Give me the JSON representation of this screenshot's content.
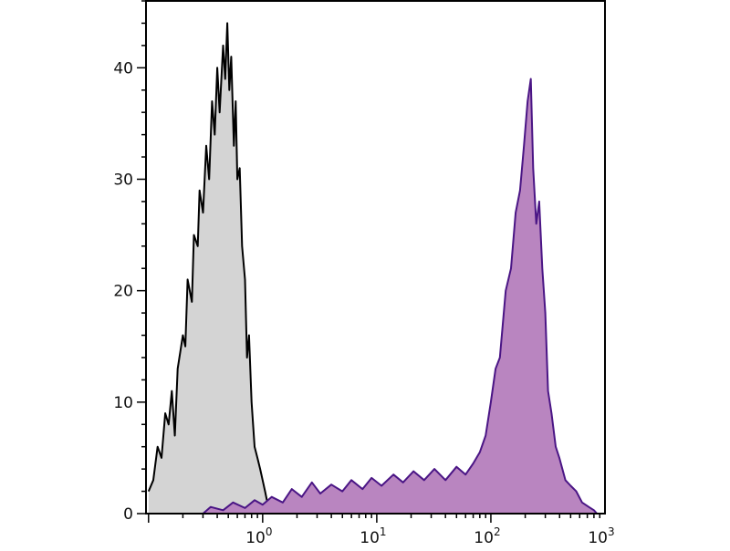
{
  "chart_data": {
    "type": "area",
    "title": "",
    "xlabel": "",
    "ylabel": "",
    "x_scale": "log",
    "xlim": [
      0.095,
      1000
    ],
    "ylim": [
      0,
      46
    ],
    "grid": false,
    "x_ticks": [
      {
        "label": "10",
        "exp": "0",
        "value": 1
      },
      {
        "label": "10",
        "exp": "1",
        "value": 10
      },
      {
        "label": "10",
        "exp": "2",
        "value": 100
      },
      {
        "label": "10",
        "exp": "3",
        "value": 1000
      }
    ],
    "y_ticks": [
      0,
      10,
      20,
      30,
      40
    ],
    "series": [
      {
        "fill": "#d4d4d4",
        "stroke": "#000000",
        "points": [
          [
            0.1,
            2
          ],
          [
            0.11,
            3
          ],
          [
            0.12,
            6
          ],
          [
            0.13,
            5
          ],
          [
            0.14,
            9
          ],
          [
            0.15,
            8
          ],
          [
            0.16,
            11
          ],
          [
            0.17,
            7
          ],
          [
            0.18,
            13
          ],
          [
            0.2,
            16
          ],
          [
            0.21,
            15
          ],
          [
            0.22,
            21
          ],
          [
            0.24,
            19
          ],
          [
            0.25,
            25
          ],
          [
            0.27,
            24
          ],
          [
            0.28,
            29
          ],
          [
            0.3,
            27
          ],
          [
            0.32,
            33
          ],
          [
            0.34,
            30
          ],
          [
            0.36,
            37
          ],
          [
            0.38,
            34
          ],
          [
            0.4,
            40
          ],
          [
            0.42,
            36
          ],
          [
            0.45,
            42
          ],
          [
            0.47,
            39
          ],
          [
            0.49,
            44
          ],
          [
            0.51,
            38
          ],
          [
            0.53,
            41
          ],
          [
            0.56,
            33
          ],
          [
            0.58,
            37
          ],
          [
            0.6,
            30
          ],
          [
            0.63,
            31
          ],
          [
            0.66,
            24
          ],
          [
            0.7,
            21
          ],
          [
            0.73,
            14
          ],
          [
            0.76,
            16
          ],
          [
            0.8,
            10
          ],
          [
            0.85,
            6
          ],
          [
            0.9,
            5
          ],
          [
            0.95,
            4
          ],
          [
            1.0,
            3
          ],
          [
            1.05,
            2
          ],
          [
            1.1,
            1
          ],
          [
            1.2,
            0
          ]
        ]
      },
      {
        "fill": "#b985c0",
        "stroke": "#4a1585",
        "points": [
          [
            0.3,
            0
          ],
          [
            0.35,
            0.6
          ],
          [
            0.45,
            0.3
          ],
          [
            0.55,
            1
          ],
          [
            0.7,
            0.5
          ],
          [
            0.85,
            1.2
          ],
          [
            1.0,
            0.8
          ],
          [
            1.2,
            1.5
          ],
          [
            1.5,
            1
          ],
          [
            1.8,
            2.2
          ],
          [
            2.2,
            1.5
          ],
          [
            2.7,
            2.8
          ],
          [
            3.2,
            1.8
          ],
          [
            4,
            2.6
          ],
          [
            5,
            2
          ],
          [
            6,
            3
          ],
          [
            7.5,
            2.2
          ],
          [
            9,
            3.2
          ],
          [
            11,
            2.5
          ],
          [
            14,
            3.5
          ],
          [
            17,
            2.8
          ],
          [
            21,
            3.8
          ],
          [
            26,
            3
          ],
          [
            32,
            4
          ],
          [
            40,
            3
          ],
          [
            50,
            4.2
          ],
          [
            60,
            3.5
          ],
          [
            70,
            4.5
          ],
          [
            80,
            5.5
          ],
          [
            90,
            7
          ],
          [
            100,
            10
          ],
          [
            110,
            13
          ],
          [
            120,
            14
          ],
          [
            135,
            20
          ],
          [
            150,
            22
          ],
          [
            165,
            27
          ],
          [
            180,
            29
          ],
          [
            195,
            33
          ],
          [
            210,
            37
          ],
          [
            224,
            39
          ],
          [
            235,
            31
          ],
          [
            250,
            26
          ],
          [
            265,
            28
          ],
          [
            282,
            22
          ],
          [
            300,
            18
          ],
          [
            317,
            11
          ],
          [
            340,
            9
          ],
          [
            370,
            6
          ],
          [
            398,
            5
          ],
          [
            450,
            3
          ],
          [
            500,
            2.5
          ],
          [
            560,
            2
          ],
          [
            630,
            1
          ],
          [
            720,
            0.6
          ],
          [
            800,
            0.3
          ],
          [
            850,
            0
          ]
        ]
      }
    ]
  }
}
